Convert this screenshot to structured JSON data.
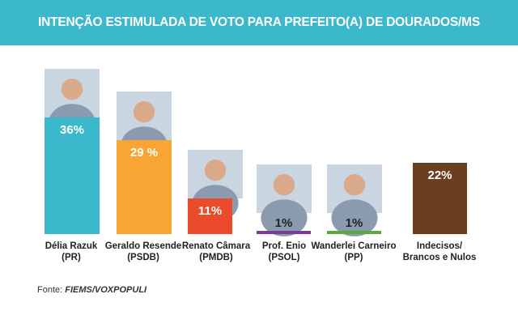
{
  "title": "INTENÇÃO ESTIMULADA DE VOTO PARA PREFEITO(A) DE  DOURADOS/MS",
  "source_prefix": "Fonte:",
  "source_name": "FIEMS/VOXPOPULI",
  "colors": {
    "header": "#3cb8cc",
    "candidates": [
      "#3cb8cc",
      "#f9a533",
      "#ea4b2a",
      "#7d3c98",
      "#5aaa3a",
      "#6b3e1f"
    ]
  },
  "chart_data": {
    "type": "bar",
    "title": "INTENÇÃO ESTIMULADA DE VOTO PARA PREFEITO(A) DE  DOURADOS/MS",
    "categories": [
      "Délia Razuk (PR)",
      "Geraldo Resende (PSDB)",
      "Renato Câmara (PMDB)",
      "Prof. Enio (PSOL)",
      "Wanderlei Carneiro (PP)",
      "Indecisos/ Brancos e Nulos"
    ],
    "values": [
      36,
      29,
      11,
      1,
      1,
      22
    ],
    "data_labels": [
      "36%",
      "29 %",
      "11%",
      "1%",
      "1%",
      "22%"
    ],
    "unit": "%",
    "xlabel": "",
    "ylabel": "",
    "grid": false,
    "legend": "none"
  },
  "candidates": [
    {
      "name": "Délia Razuk",
      "party": "(PR)",
      "photo": "photo-delia-razuk"
    },
    {
      "name": "Geraldo Resende",
      "party": "(PSDB)",
      "photo": "photo-geraldo-resende"
    },
    {
      "name": "Renato Câmara",
      "party": "(PMDB)",
      "photo": "photo-renato-camara"
    },
    {
      "name": "Prof. Enio",
      "party": "(PSOL)",
      "photo": "photo-prof-enio"
    },
    {
      "name": "Wanderlei Carneiro",
      "party": "(PP)",
      "photo": "photo-wanderlei-carneiro"
    },
    {
      "name": "Indecisos/",
      "party": "Brancos e Nulos",
      "photo": ""
    }
  ]
}
